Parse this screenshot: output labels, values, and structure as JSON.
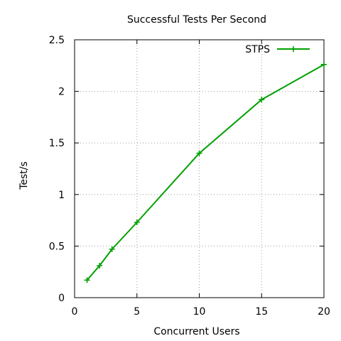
{
  "chart_data": {
    "type": "line",
    "title": "Successful Tests Per Second",
    "xlabel": "Concurrent Users",
    "ylabel": "Test/s",
    "xlim": [
      0,
      20
    ],
    "ylim": [
      0,
      2.5
    ],
    "xticks": [
      0,
      5,
      10,
      15,
      20
    ],
    "yticks": [
      0,
      0.5,
      1,
      1.5,
      2,
      2.5
    ],
    "xtick_labels": [
      "0",
      "5",
      "10",
      "15",
      "20"
    ],
    "ytick_labels": [
      "0",
      "0.5",
      "1",
      "1.5",
      "2",
      "2.5"
    ],
    "grid": true,
    "legend_position": "top-right",
    "series": [
      {
        "name": "STPS",
        "color": "#00a000",
        "marker": "plus",
        "x": [
          1,
          2,
          3,
          5,
          10,
          15,
          20
        ],
        "y": [
          0.17,
          0.31,
          0.47,
          0.73,
          1.4,
          1.92,
          2.26
        ]
      }
    ]
  }
}
